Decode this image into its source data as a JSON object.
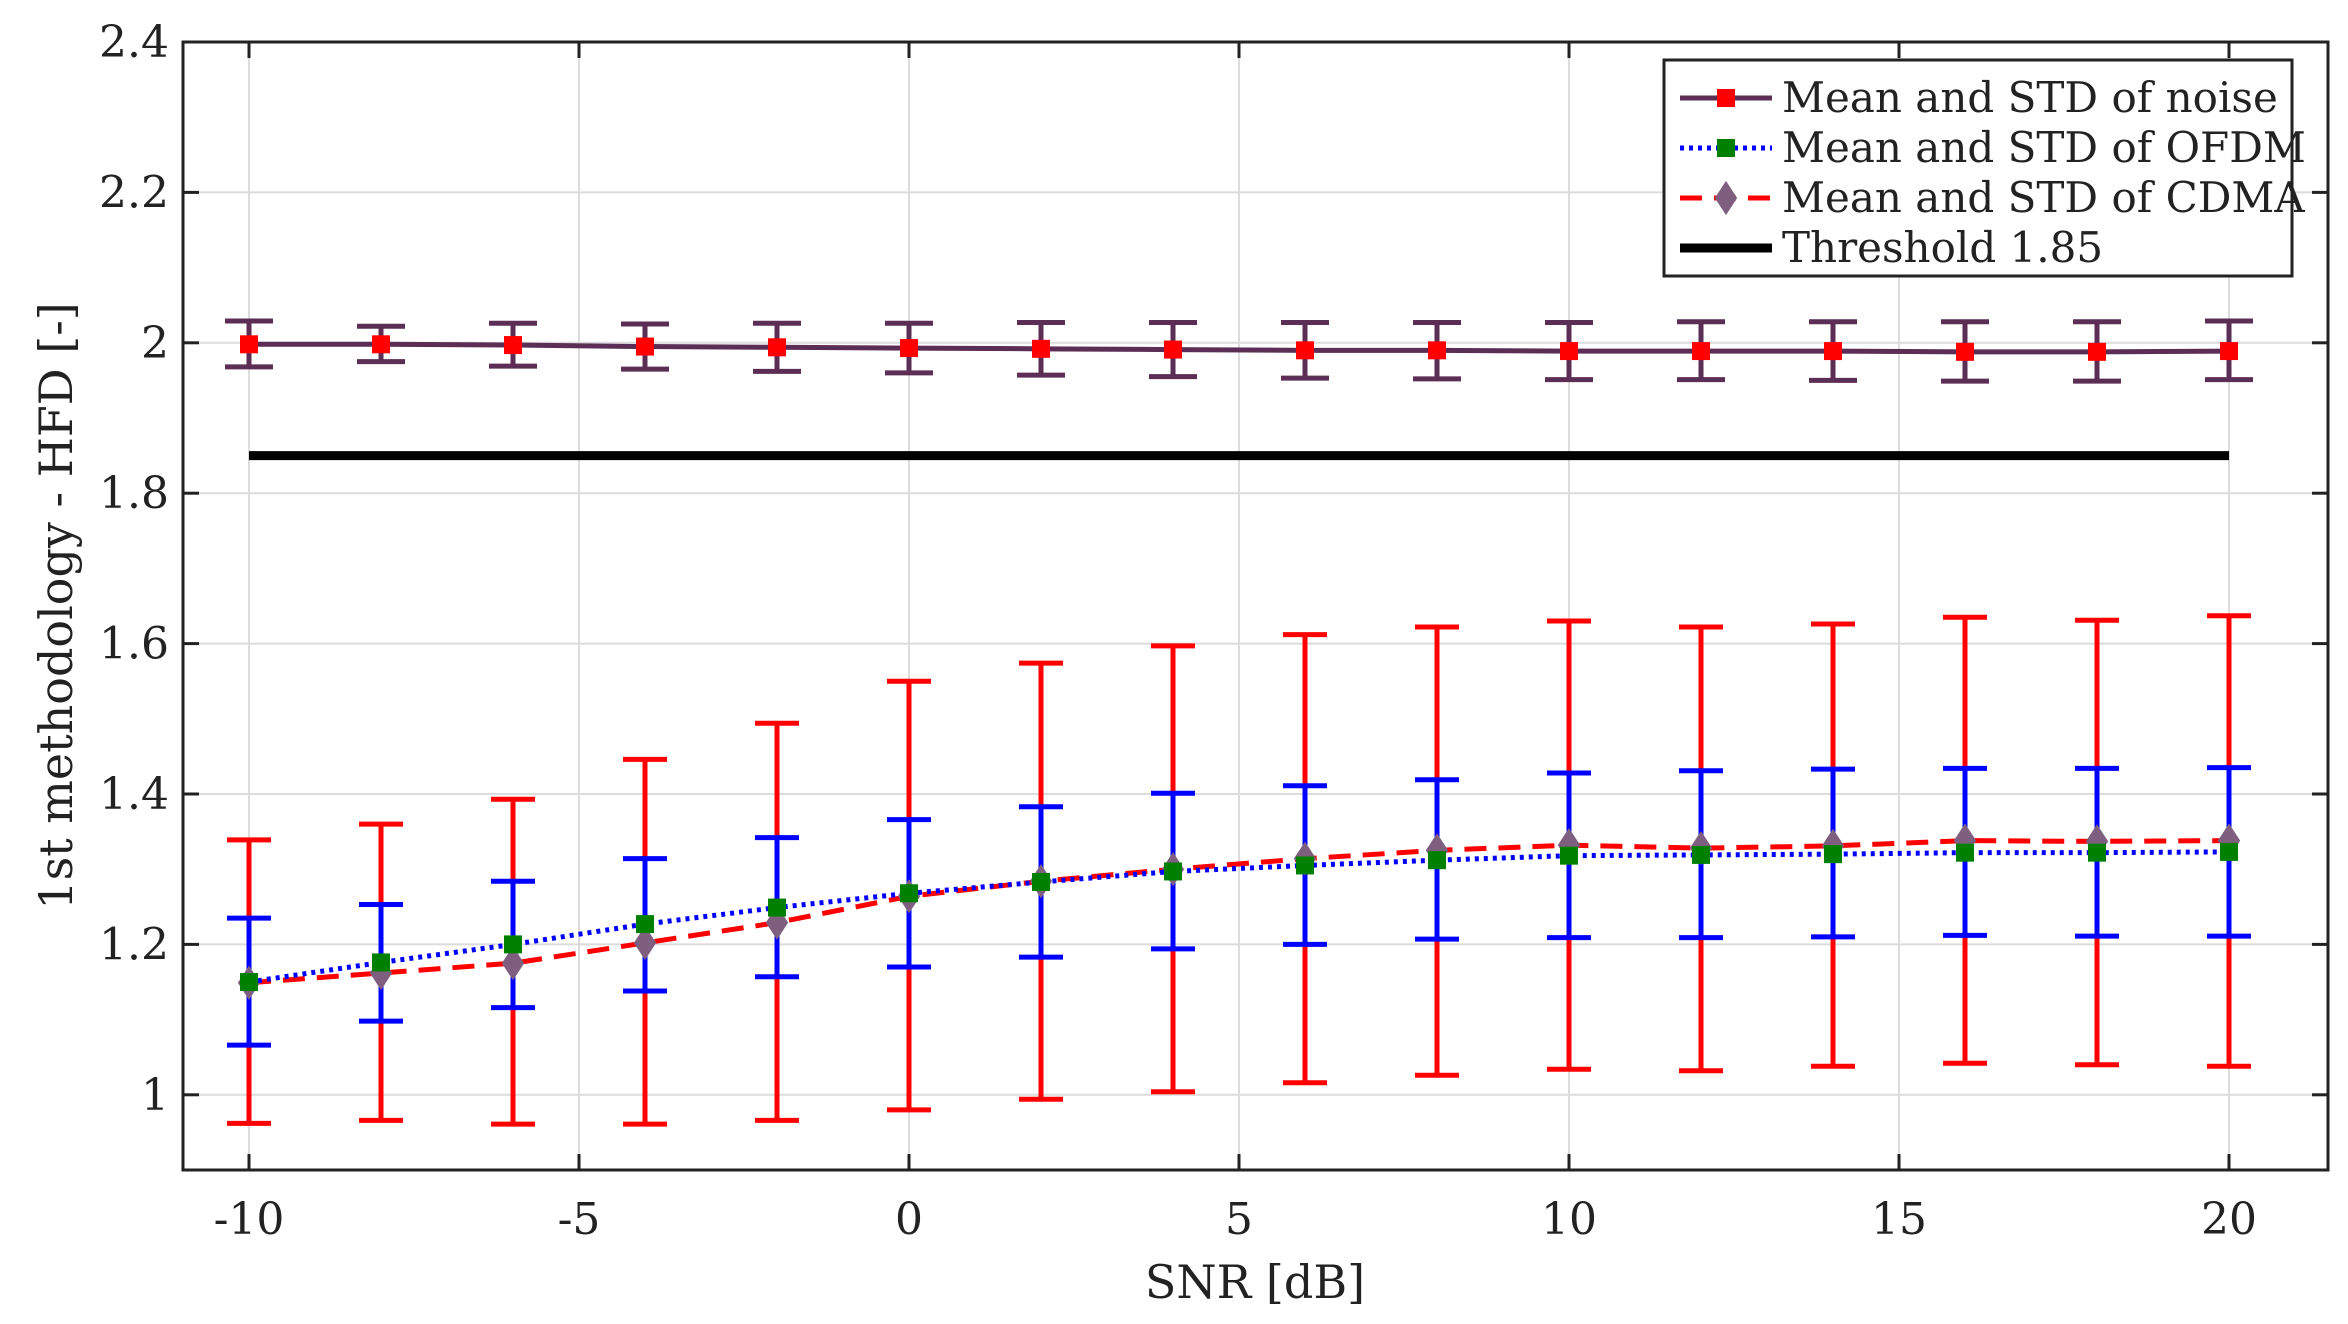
{
  "chart_data": {
    "type": "line",
    "title": "",
    "xlabel": "SNR [dB]",
    "ylabel": "1st methodology - HFD [-]",
    "xlim": [
      -11,
      21.5
    ],
    "ylim": [
      0.9,
      2.4
    ],
    "xticks": [
      -10,
      -5,
      0,
      5,
      10,
      15,
      20
    ],
    "xtick_labels": [
      "-10",
      "-5",
      "0",
      "5",
      "10",
      "15",
      "20"
    ],
    "yticks": [
      1,
      1.2,
      1.4,
      1.6,
      1.8,
      2,
      2.2,
      2.4
    ],
    "ytick_labels": [
      "1",
      "1.2",
      "1.4",
      "1.6",
      "1.8",
      "2",
      "2.2",
      "2.4"
    ],
    "grid": true,
    "legend_position": "top-right",
    "x": [
      -10,
      -8,
      -6,
      -4,
      -2,
      0,
      2,
      4,
      6,
      8,
      10,
      12,
      14,
      16,
      18,
      20
    ],
    "series": [
      {
        "name": "Mean and STD of noise",
        "color": "#5c2d55",
        "marker_color": "#ff0000",
        "marker": "square",
        "line_style": "solid",
        "values": [
          1.998,
          1.998,
          1.997,
          1.995,
          1.994,
          1.993,
          1.992,
          1.991,
          1.99,
          1.99,
          1.989,
          1.989,
          1.989,
          1.988,
          1.988,
          1.989
        ],
        "err_low": [
          1.968,
          1.975,
          1.969,
          1.965,
          1.962,
          1.96,
          1.957,
          1.955,
          1.953,
          1.952,
          1.951,
          1.951,
          1.95,
          1.949,
          1.949,
          1.951
        ],
        "err_high": [
          2.029,
          2.022,
          2.026,
          2.025,
          2.026,
          2.026,
          2.027,
          2.027,
          2.027,
          2.027,
          2.027,
          2.028,
          2.028,
          2.028,
          2.028,
          2.029
        ]
      },
      {
        "name": "Mean and STD of OFDM",
        "color": "#0000ff",
        "marker_color": "#008000",
        "marker": "square",
        "line_style": "dotted",
        "values": [
          1.15,
          1.176,
          1.2,
          1.227,
          1.249,
          1.268,
          1.283,
          1.297,
          1.305,
          1.312,
          1.318,
          1.319,
          1.32,
          1.322,
          1.322,
          1.323
        ],
        "err_low": [
          1.066,
          1.098,
          1.116,
          1.138,
          1.157,
          1.17,
          1.183,
          1.194,
          1.2,
          1.207,
          1.209,
          1.209,
          1.21,
          1.212,
          1.211,
          1.211
        ],
        "err_high": [
          1.235,
          1.253,
          1.284,
          1.314,
          1.342,
          1.366,
          1.383,
          1.401,
          1.411,
          1.419,
          1.428,
          1.431,
          1.433,
          1.434,
          1.434,
          1.435
        ]
      },
      {
        "name": "Mean and STD of CDMA",
        "color": "#ff0000",
        "marker_color": "#7f5f7f",
        "marker": "diamond",
        "line_style": "dashed",
        "values": [
          1.149,
          1.162,
          1.175,
          1.202,
          1.229,
          1.264,
          1.284,
          1.3,
          1.314,
          1.325,
          1.332,
          1.328,
          1.331,
          1.338,
          1.337,
          1.338
        ],
        "err_low": [
          0.962,
          0.966,
          0.961,
          0.961,
          0.966,
          0.98,
          0.994,
          1.004,
          1.016,
          1.026,
          1.034,
          1.032,
          1.038,
          1.042,
          1.04,
          1.038
        ],
        "err_high": [
          1.339,
          1.36,
          1.393,
          1.446,
          1.494,
          1.55,
          1.574,
          1.597,
          1.612,
          1.622,
          1.63,
          1.622,
          1.626,
          1.635,
          1.631,
          1.637
        ]
      },
      {
        "name": "Threshold 1.85",
        "color": "#000000",
        "marker": "none",
        "line_style": "solid",
        "values": [
          1.85,
          1.85,
          1.85,
          1.85,
          1.85,
          1.85,
          1.85,
          1.85,
          1.85,
          1.85,
          1.85,
          1.85,
          1.85,
          1.85,
          1.85,
          1.85
        ]
      }
    ]
  }
}
